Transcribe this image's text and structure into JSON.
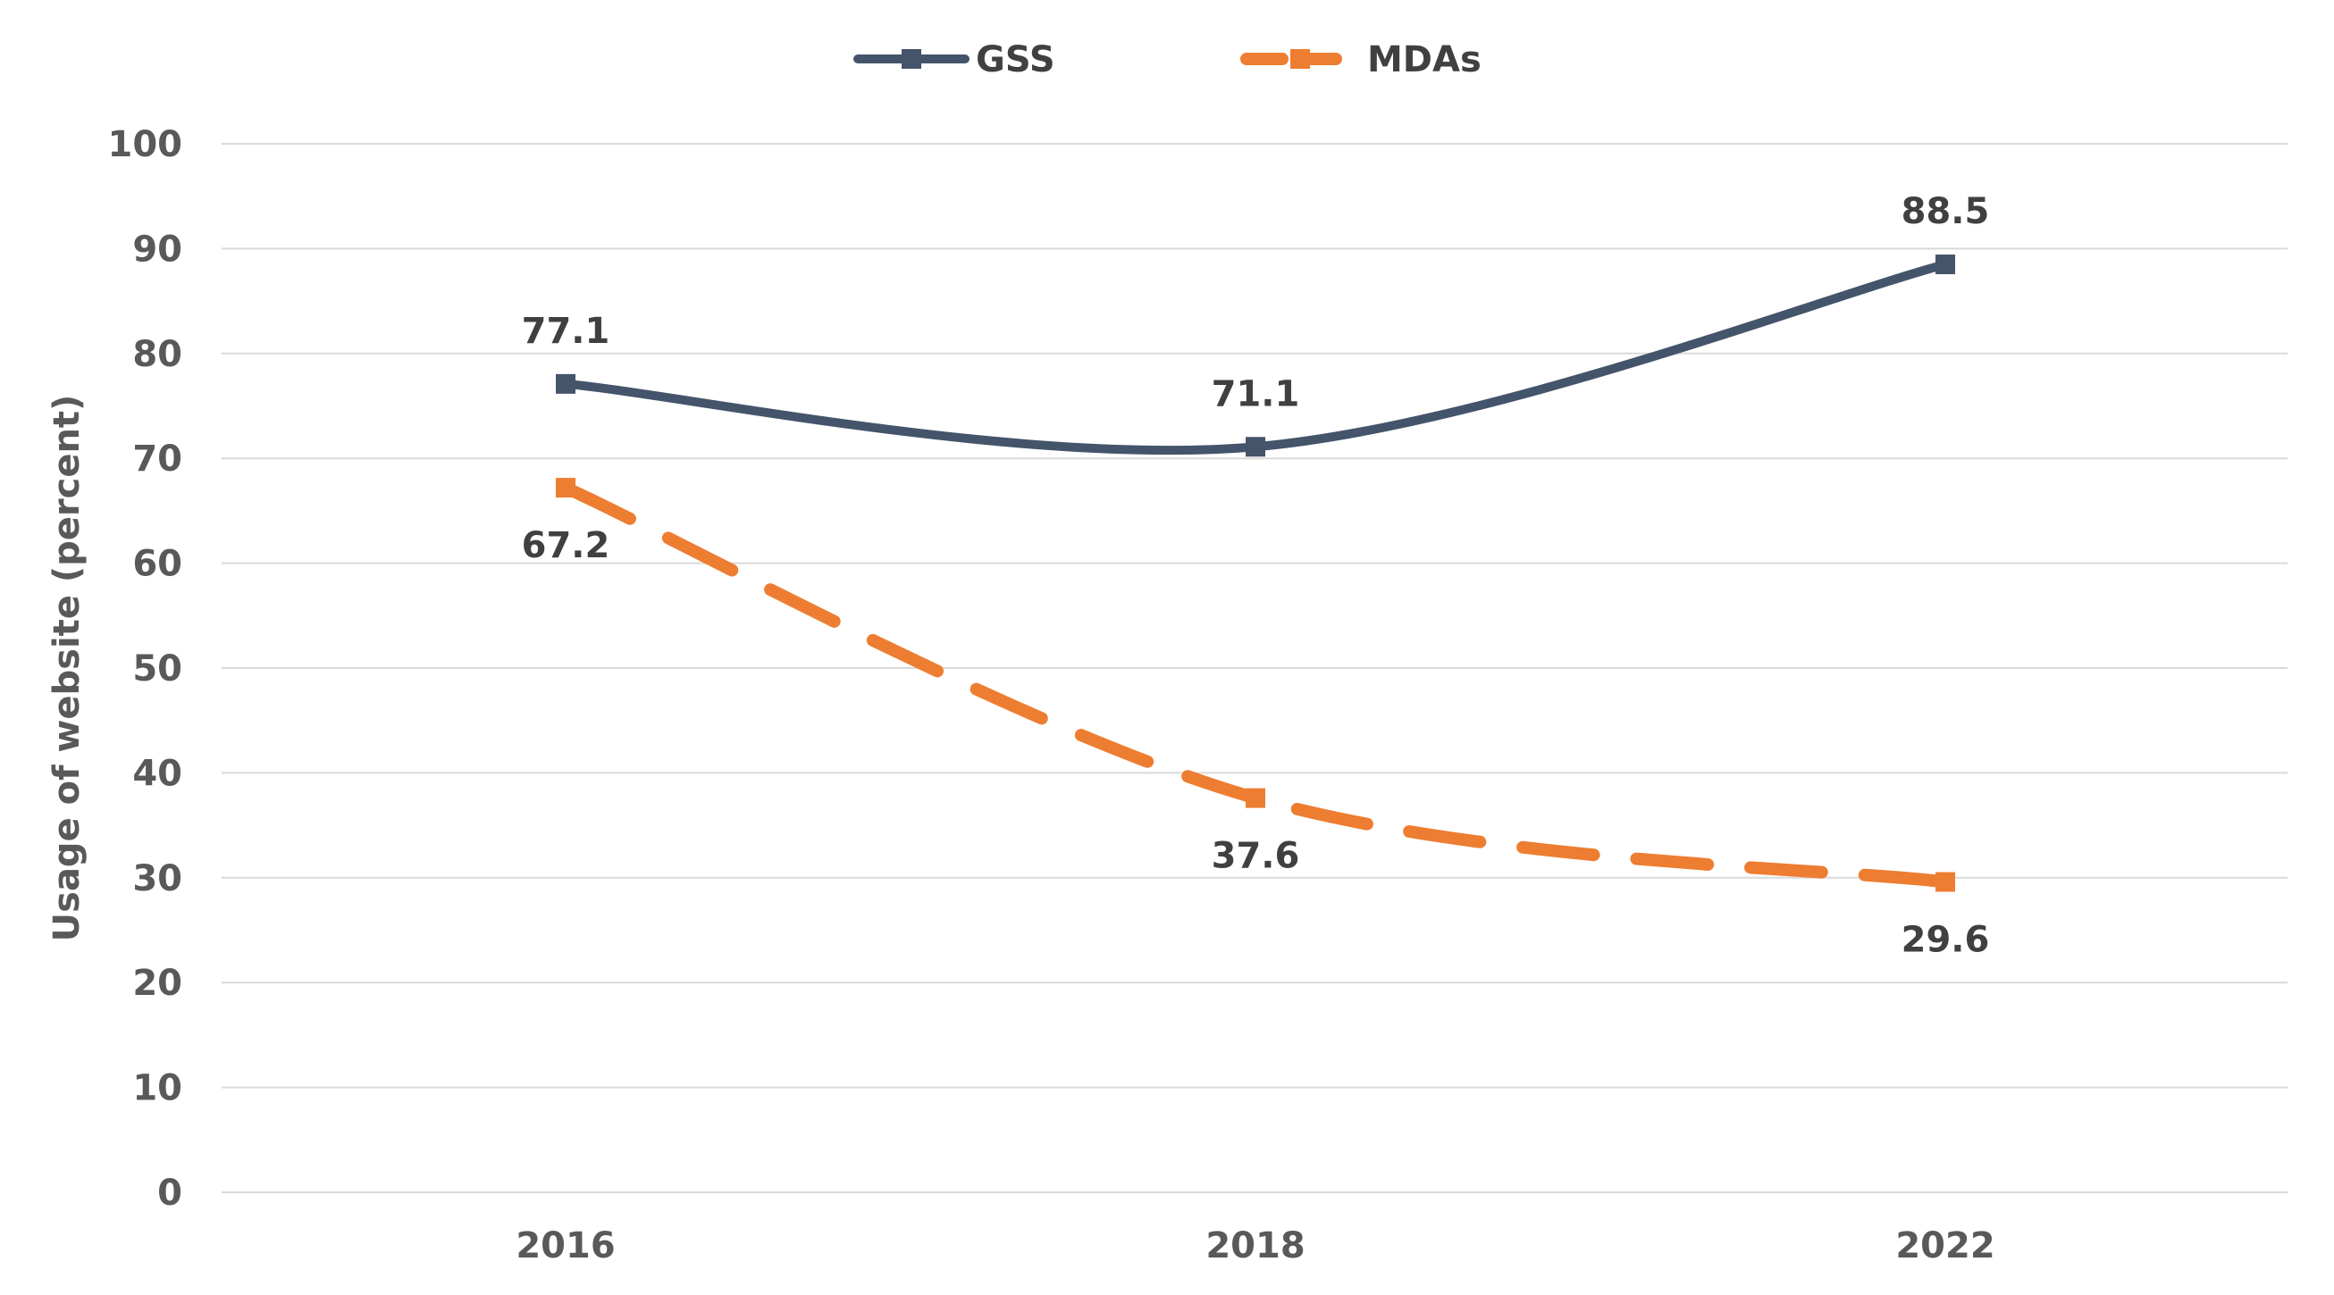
{
  "chart_data": {
    "type": "line",
    "x": [
      "2016",
      "2018",
      "2022"
    ],
    "ylabel": "Usage of website (percent)",
    "ylim": [
      0,
      100
    ],
    "yticks": [
      0,
      10,
      20,
      30,
      40,
      50,
      60,
      70,
      80,
      90,
      100
    ],
    "grid": true,
    "legend_position": "top",
    "series": [
      {
        "name": "GSS",
        "values": [
          77.1,
          71.1,
          88.5
        ],
        "labels": [
          "77.1",
          "71.1",
          "88.5"
        ],
        "label_position": "above",
        "color": "#44546A",
        "line_style": "solid",
        "smooth": true,
        "marker": "square"
      },
      {
        "name": "MDAs",
        "values": [
          67.2,
          37.6,
          29.6
        ],
        "labels": [
          "67.2",
          "37.6",
          "29.6"
        ],
        "label_position": "below",
        "color": "#ED7D31",
        "line_style": "dashed",
        "smooth": true,
        "marker": "square"
      }
    ],
    "gridline_color": "#D9D9D9"
  }
}
